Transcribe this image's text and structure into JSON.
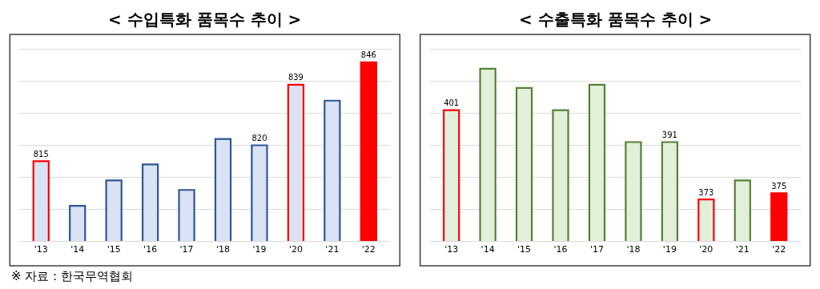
{
  "chart_data": [
    {
      "type": "bar",
      "title": "< 수입특화 품목수 추이 >",
      "categories": [
        "'13",
        "'14",
        "'15",
        "'16",
        "'17",
        "'18",
        "'19",
        "'20",
        "'21",
        "'22"
      ],
      "series": [
        {
          "color": "#dae3f3",
          "colors": [
            "#ff0000",
            "#2f5597",
            "#2f5597",
            "#2f5597",
            "#2f5597",
            "#2f5597",
            "#2f5597",
            "#ff0000",
            "#2f5597",
            null
          ],
          "values": [
            815,
            801,
            809,
            814,
            806,
            822,
            820,
            839,
            834,
            null
          ],
          "value_labels": [
            "815",
            null,
            null,
            null,
            null,
            null,
            "820",
            "839",
            null,
            null
          ]
        },
        {
          "color": "#ff0000",
          "values": [
            null,
            null,
            null,
            null,
            null,
            null,
            null,
            null,
            null,
            846
          ],
          "value_labels": [
            null,
            null,
            null,
            null,
            null,
            null,
            null,
            null,
            null,
            "846"
          ]
        }
      ],
      "ylim": [
        790,
        850
      ],
      "grid": "y",
      "tick_labels": "x",
      "annotations": [
        "※ 자료 : 한국무역협회"
      ]
    },
    {
      "type": "bar",
      "title": "< 수출특화 품목수 추이 >",
      "categories": [
        "'13",
        "'14",
        "'15",
        "'16",
        "'17",
        "'18",
        "'19",
        "'20",
        "'21",
        "'22"
      ],
      "series": [
        {
          "color": "#e2efda",
          "colors": [
            "#ff0000",
            "#548235",
            "#548235",
            "#548235",
            "#548235",
            "#548235",
            "#548235",
            "#ff0000",
            "#548235",
            null
          ],
          "values": [
            401,
            414,
            408,
            401,
            409,
            391,
            391,
            373,
            379,
            null
          ],
          "value_labels": [
            "401",
            null,
            null,
            null,
            null,
            null,
            "391",
            "373",
            null,
            null
          ]
        },
        {
          "color": "#ff0000",
          "values": [
            null,
            null,
            null,
            null,
            null,
            null,
            null,
            null,
            null,
            375
          ],
          "value_labels": [
            null,
            null,
            null,
            null,
            null,
            null,
            null,
            null,
            null,
            "375"
          ]
        }
      ],
      "ylim": [
        360,
        420
      ],
      "grid": "y",
      "tick_labels": "x"
    }
  ]
}
